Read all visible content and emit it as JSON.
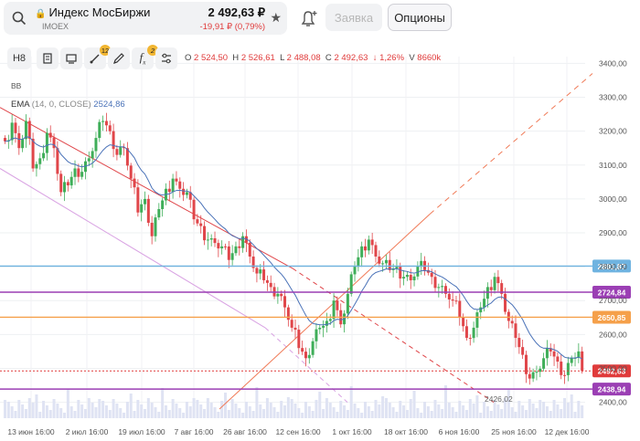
{
  "ticker": {
    "name": "Индекс МосБиржи",
    "code": "IMOEX",
    "price": "2 492,63 ₽",
    "change": "-19,91 ₽ (0,79%)"
  },
  "buttons": {
    "order_label": "Заявка",
    "options_label": "Опционы"
  },
  "toolbar": {
    "interval_label": "H8",
    "drawing_badge": "12",
    "indicator_badge": "2",
    "icons": [
      "chart-type-icon",
      "compare-icon",
      "drawing-tools-icon",
      "pen-icon",
      "fx-indicators-icon",
      "settings-sliders-icon"
    ]
  },
  "ohlc": {
    "o_label": "O",
    "o": "2 524,50",
    "h_label": "H",
    "h": "2 526,61",
    "l_label": "L",
    "l": "2 488,08",
    "c_label": "C",
    "c": "2 492,63",
    "change": "↓ 1,26%",
    "v_label": "V",
    "v": "8660k"
  },
  "indicators": {
    "bb_label": "BB",
    "ema_label": "EMA",
    "ema_params": "(14, 0, CLOSE)",
    "ema_value": "2524,86"
  },
  "chart_data": {
    "type": "candlestick",
    "y_ticks": [
      "3400,00",
      "3300,00",
      "3200,00",
      "3100,00",
      "3000,00",
      "2900,00",
      "2800,00",
      "2700,00",
      "2600,00",
      "2500,00",
      "2400,00"
    ],
    "ylim": [
      2380,
      3420
    ],
    "x_ticks": [
      "13 июн 16:00",
      "2 июл 16:00",
      "19 июл 16:00",
      "7 авг 16:00",
      "26 авг 16:00",
      "12 сен 16:00",
      "1 окт 16:00",
      "18 окт 16:00",
      "6 ноя 16:00",
      "25 ноя 16:00",
      "12 дек 16:00"
    ],
    "close_path": [
      3170,
      3225,
      3150,
      3230,
      3090,
      3120,
      3195,
      3150,
      3020,
      3040,
      3090,
      3080,
      3120,
      3180,
      3230,
      3200,
      3130,
      3150,
      3060,
      2960,
      3000,
      2890,
      2970,
      3030,
      3060,
      3030,
      3020,
      2940,
      2920,
      2880,
      2870,
      2860,
      2820,
      2860,
      2890,
      2830,
      2780,
      2760,
      2740,
      2720,
      2680,
      2620,
      2560,
      2530,
      2580,
      2620,
      2640,
      2700,
      2630,
      2720,
      2800,
      2860,
      2880,
      2830,
      2810,
      2790,
      2800,
      2770,
      2760,
      2800,
      2790,
      2770,
      2740,
      2720,
      2700,
      2650,
      2590,
      2620,
      2680,
      2740,
      2770,
      2720,
      2640,
      2590,
      2540,
      2470,
      2490,
      2530,
      2550,
      2520,
      2480,
      2530,
      2550
    ],
    "price_levels": [
      {
        "label": "2801,87",
        "value": 2801.87,
        "color": "#6fb3e0"
      },
      {
        "label": "2724,84",
        "value": 2724.84,
        "color": "#9b3fb4"
      },
      {
        "label": "2650,85",
        "value": 2650.85,
        "color": "#f5a04a"
      },
      {
        "label": "2492,63",
        "value": 2492.63,
        "color": "#e03b3b"
      },
      {
        "label": "2438,94",
        "value": 2438.94,
        "color": "#9b3fb4"
      }
    ],
    "annotation": "2426,02"
  }
}
